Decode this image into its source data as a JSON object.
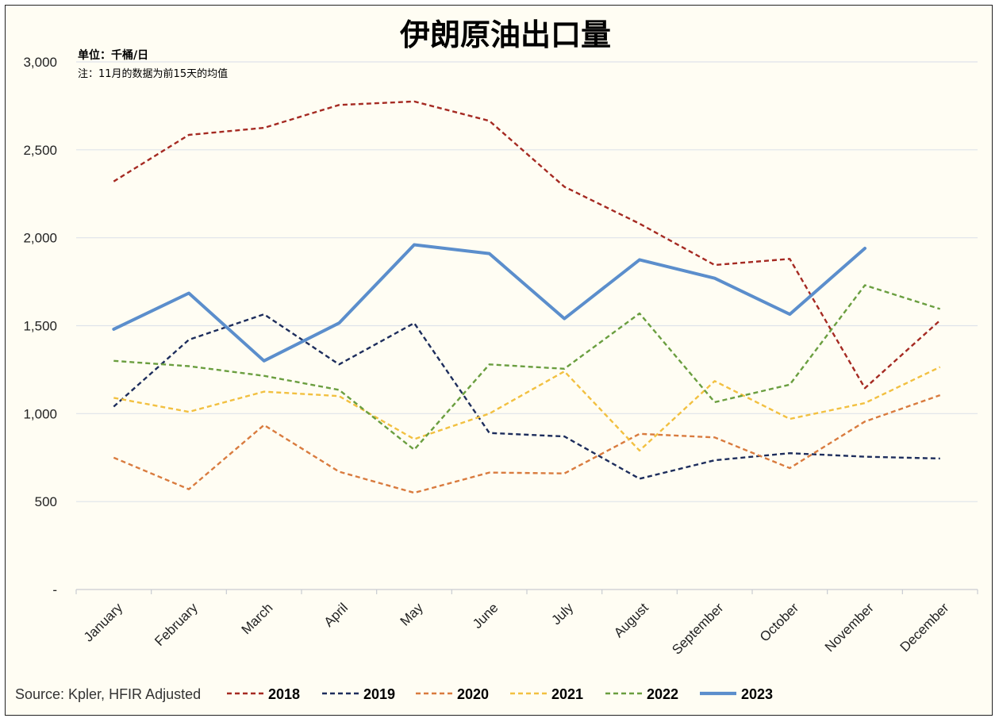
{
  "chart_data": {
    "type": "line",
    "title": "伊朗原油出口量",
    "subtitle": "单位：千桶/日",
    "note": "注：11月的数据为前15天的均值",
    "source": "Source: Kpler, HFIR Adjusted",
    "categories": [
      "January",
      "February",
      "March",
      "April",
      "May",
      "June",
      "July",
      "August",
      "September",
      "October",
      "November",
      "December"
    ],
    "ylim": [
      0,
      3000
    ],
    "yticks": [
      {
        "value": 0,
        "label": "-"
      },
      {
        "value": 500,
        "label": "500"
      },
      {
        "value": 1000,
        "label": "1,000"
      },
      {
        "value": 1500,
        "label": "1,500"
      },
      {
        "value": 2000,
        "label": "2,000"
      },
      {
        "value": 2500,
        "label": "2,500"
      },
      {
        "value": 3000,
        "label": "3,000"
      }
    ],
    "grid": true,
    "legend_position": "bottom",
    "series": [
      {
        "name": "2018",
        "color": "#a52a22",
        "dashed": true,
        "values": [
          2320,
          2585,
          2625,
          2755,
          2775,
          2665,
          2290,
          2080,
          1845,
          1880,
          1145,
          1530
        ]
      },
      {
        "name": "2019",
        "color": "#1d2d5c",
        "dashed": true,
        "values": [
          1040,
          1420,
          1565,
          1280,
          1515,
          890,
          870,
          630,
          735,
          775,
          755,
          745
        ]
      },
      {
        "name": "2020",
        "color": "#d97b3e",
        "dashed": true,
        "values": [
          750,
          570,
          935,
          670,
          550,
          665,
          660,
          885,
          865,
          690,
          955,
          1105
        ]
      },
      {
        "name": "2021",
        "color": "#f2c040",
        "dashed": true,
        "values": [
          1090,
          1010,
          1125,
          1100,
          855,
          1000,
          1240,
          790,
          1185,
          970,
          1060,
          1265
        ]
      },
      {
        "name": "2022",
        "color": "#6a9e3f",
        "dashed": true,
        "values": [
          1300,
          1270,
          1215,
          1135,
          795,
          1280,
          1255,
          1570,
          1065,
          1165,
          1730,
          1595
        ]
      },
      {
        "name": "2023",
        "color": "#5b8ecc",
        "dashed": false,
        "values": [
          1480,
          1685,
          1300,
          1515,
          1960,
          1910,
          1540,
          1875,
          1770,
          1565,
          1940,
          null
        ]
      }
    ]
  }
}
